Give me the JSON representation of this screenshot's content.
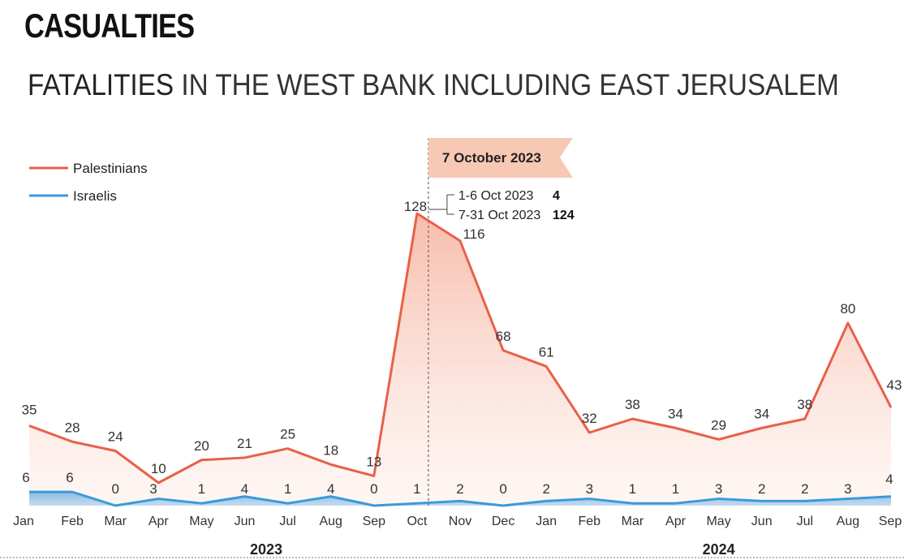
{
  "section_title": "CASUALTIES",
  "chart_title_part1": "FATALITIES",
  "chart_title_part2": " IN THE WEST BANK INCLUDING EAST JERUSALEM",
  "colors": {
    "palestinians": "#e8604a",
    "israelis": "#3a9ad9",
    "banner": "#f7c8b3"
  },
  "chart_data": {
    "type": "line",
    "categories": [
      "Jan",
      "Feb",
      "Mar",
      "Apr",
      "May",
      "Jun",
      "Jul",
      "Aug",
      "Sep",
      "Oct",
      "Nov",
      "Dec",
      "Jan",
      "Feb",
      "Mar",
      "Apr",
      "May",
      "Jun",
      "Jul",
      "Aug",
      "Sep"
    ],
    "year_labels": [
      {
        "label": "2023",
        "start": 0,
        "end": 11
      },
      {
        "label": "2024",
        "start": 12,
        "end": 20
      }
    ],
    "series": [
      {
        "name": "Palestinians",
        "values": [
          35,
          28,
          24,
          10,
          20,
          21,
          25,
          18,
          13,
          128,
          116,
          68,
          61,
          32,
          38,
          34,
          29,
          34,
          38,
          80,
          43
        ]
      },
      {
        "name": "Israelis",
        "values": [
          6,
          6,
          0,
          3,
          1,
          4,
          1,
          4,
          0,
          1,
          2,
          0,
          2,
          3,
          1,
          1,
          3,
          2,
          2,
          3,
          4
        ]
      }
    ],
    "legend_position": "top-left",
    "annotation": {
      "banner": "7 October 2023",
      "rows": [
        {
          "label": "1-6 Oct 2023",
          "value": "4"
        },
        {
          "label": "7-31 Oct 2023",
          "value": "124"
        }
      ]
    }
  }
}
